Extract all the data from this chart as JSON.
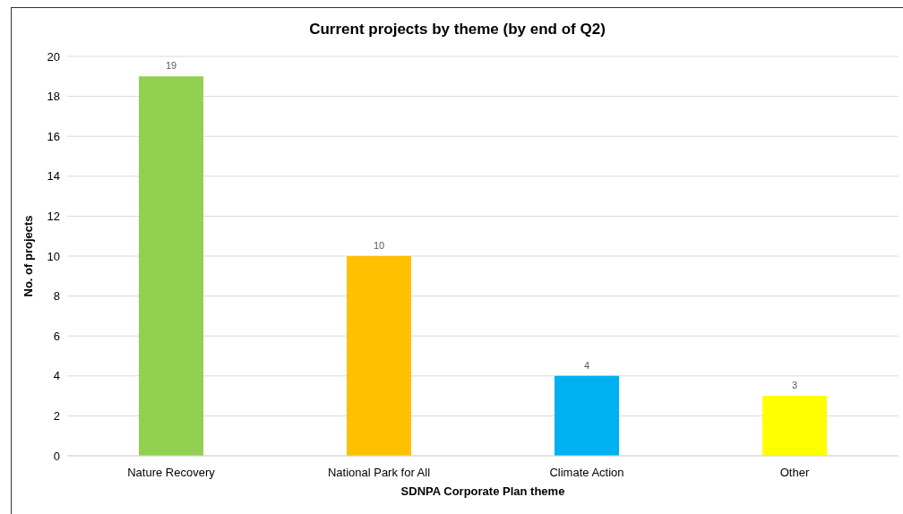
{
  "chart_data": {
    "type": "bar",
    "title": "Current projects by theme (by end of Q2)",
    "xlabel": "SDNPA Corporate Plan theme",
    "ylabel": "No. of projects",
    "categories": [
      "Nature Recovery",
      "National Park for All",
      "Climate Action",
      "Other"
    ],
    "values": [
      19,
      10,
      4,
      3
    ],
    "colors": [
      "#92d050",
      "#ffc000",
      "#00b0f0",
      "#ffff00"
    ],
    "ylim": [
      0,
      20
    ],
    "yticks": [
      0,
      2,
      4,
      6,
      8,
      10,
      12,
      14,
      16,
      18,
      20
    ],
    "grid": "y",
    "data_labels": true,
    "legend": false
  }
}
